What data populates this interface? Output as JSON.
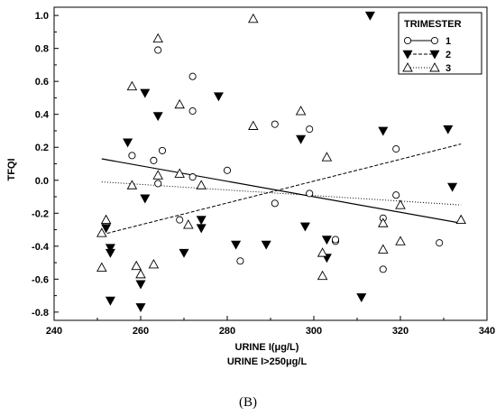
{
  "chart_data": {
    "type": "scatter",
    "title": "",
    "xlabel": "URINE I(μg/L)",
    "xlabel2": "URINE I>250μg/L",
    "ylabel": "TFQI",
    "xlim": [
      240,
      340
    ],
    "ylim": [
      -0.85,
      1.05
    ],
    "xticks": [
      240,
      260,
      280,
      300,
      320,
      340
    ],
    "yticks": [
      -0.8,
      -0.6,
      -0.4,
      -0.2,
      0.0,
      0.2,
      0.4,
      0.6,
      0.8,
      1.0
    ],
    "xtick_labels": [
      "240",
      "260",
      "280",
      "300",
      "320",
      "340"
    ],
    "ytick_labels": [
      "-0.8",
      "-0.6",
      "-0.4",
      "-0.2",
      "0.0",
      "0.2",
      "0.4",
      "0.6",
      "0.8",
      "1.0"
    ],
    "grid": false,
    "legend_position": "top-right",
    "legend_title": "TRIMESTER",
    "panel_label": "(B)",
    "series": [
      {
        "name": "1",
        "marker": "circle-open",
        "line_style": "solid",
        "color": "#000000",
        "points": [
          [
            252,
            -0.27
          ],
          [
            258,
            0.15
          ],
          [
            263,
            0.12
          ],
          [
            264,
            0.79
          ],
          [
            264,
            -0.02
          ],
          [
            265,
            0.18
          ],
          [
            269,
            -0.24
          ],
          [
            272,
            0.63
          ],
          [
            272,
            0.42
          ],
          [
            272,
            0.02
          ],
          [
            280,
            0.06
          ],
          [
            283,
            -0.49
          ],
          [
            291,
            0.34
          ],
          [
            291,
            -0.14
          ],
          [
            299,
            0.31
          ],
          [
            299,
            -0.08
          ],
          [
            305,
            -0.37
          ],
          [
            305,
            -0.36
          ],
          [
            316,
            -0.23
          ],
          [
            316,
            -0.54
          ],
          [
            319,
            0.19
          ],
          [
            319,
            -0.09
          ],
          [
            329,
            -0.38
          ]
        ],
        "trend": [
          [
            251,
            0.13
          ],
          [
            334,
            -0.26
          ]
        ]
      },
      {
        "name": "2",
        "marker": "triangle-down-filled",
        "line_style": "dashed",
        "color": "#000000",
        "points": [
          [
            252,
            -0.29
          ],
          [
            253,
            -0.41
          ],
          [
            253,
            -0.44
          ],
          [
            253,
            -0.73
          ],
          [
            257,
            0.23
          ],
          [
            260,
            -0.63
          ],
          [
            260,
            -0.77
          ],
          [
            261,
            0.53
          ],
          [
            261,
            -0.11
          ],
          [
            264,
            0.39
          ],
          [
            270,
            -0.44
          ],
          [
            274,
            -0.24
          ],
          [
            274,
            -0.29
          ],
          [
            278,
            0.51
          ],
          [
            282,
            -0.39
          ],
          [
            289,
            -0.39
          ],
          [
            297,
            0.25
          ],
          [
            298,
            -0.28
          ],
          [
            303,
            -0.36
          ],
          [
            303,
            -0.47
          ],
          [
            311,
            -0.71
          ],
          [
            313,
            1.0
          ],
          [
            316,
            0.3
          ],
          [
            331,
            0.31
          ],
          [
            332,
            -0.04
          ]
        ],
        "trend": [
          [
            251,
            -0.33
          ],
          [
            334,
            0.22
          ]
        ]
      },
      {
        "name": "3",
        "marker": "triangle-up-open",
        "line_style": "dotted",
        "color": "#000000",
        "points": [
          [
            251,
            -0.32
          ],
          [
            251,
            -0.53
          ],
          [
            252,
            -0.24
          ],
          [
            258,
            0.57
          ],
          [
            258,
            -0.03
          ],
          [
            259,
            -0.52
          ],
          [
            260,
            -0.57
          ],
          [
            263,
            -0.51
          ],
          [
            264,
            0.86
          ],
          [
            264,
            0.03
          ],
          [
            269,
            0.46
          ],
          [
            269,
            0.04
          ],
          [
            271,
            -0.27
          ],
          [
            274,
            -0.03
          ],
          [
            286,
            0.98
          ],
          [
            286,
            0.33
          ],
          [
            297,
            0.42
          ],
          [
            302,
            -0.44
          ],
          [
            302,
            -0.58
          ],
          [
            303,
            0.14
          ],
          [
            316,
            -0.26
          ],
          [
            316,
            -0.42
          ],
          [
            320,
            -0.15
          ],
          [
            320,
            -0.37
          ],
          [
            334,
            -0.24
          ]
        ],
        "trend": [
          [
            251,
            -0.01
          ],
          [
            334,
            -0.15
          ]
        ]
      }
    ]
  }
}
